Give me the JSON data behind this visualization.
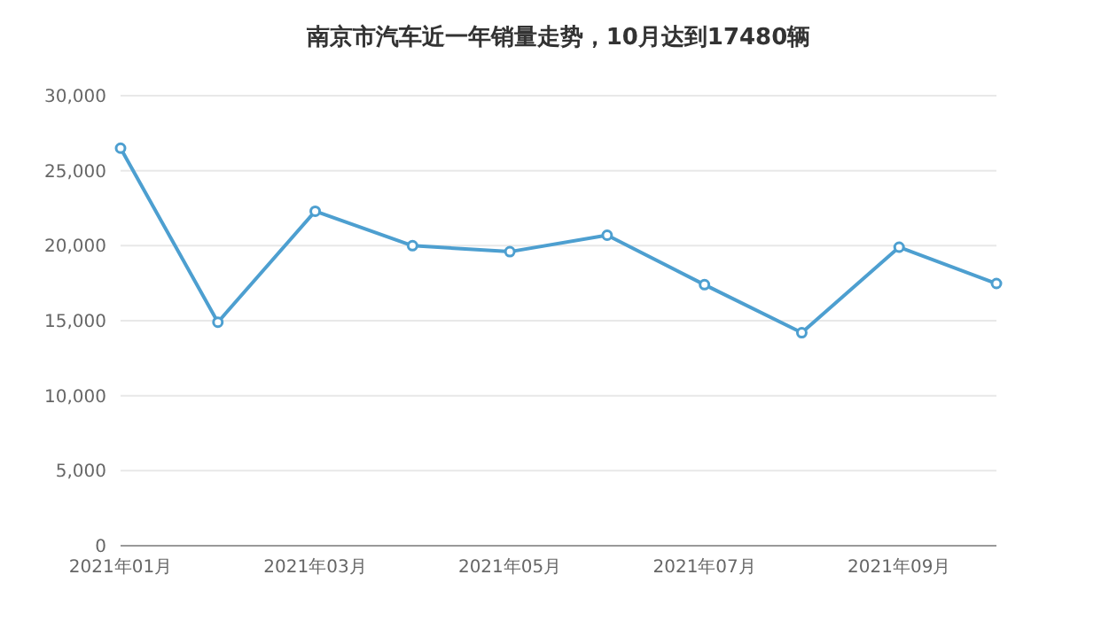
{
  "chart_data": {
    "type": "line",
    "title": "南京市汽车近一年销量走势，10月达到17480辆",
    "categories": [
      "2021年01月",
      null,
      "2021年03月",
      null,
      "2021年05月",
      null,
      "2021年07月",
      null,
      "2021年09月",
      null
    ],
    "series": [
      {
        "color": "#4d9fd0",
        "values": [
          26500,
          14900,
          22300,
          20000,
          19600,
          20700,
          17400,
          14200,
          19900,
          17480
        ]
      }
    ],
    "ylim": [
      0,
      30000
    ],
    "yticks": [
      0,
      {
        "value": 5000,
        "label": "5,000"
      },
      {
        "value": 10000,
        "label": "10,000"
      },
      {
        "value": 15000,
        "label": "15,000"
      },
      {
        "value": 20000,
        "label": "20,000"
      },
      {
        "value": 25000,
        "label": "25,000"
      },
      {
        "value": 30000,
        "label": "30,000"
      }
    ],
    "grid": "y",
    "legend": false,
    "marker": "circle",
    "line_style": "solid"
  }
}
